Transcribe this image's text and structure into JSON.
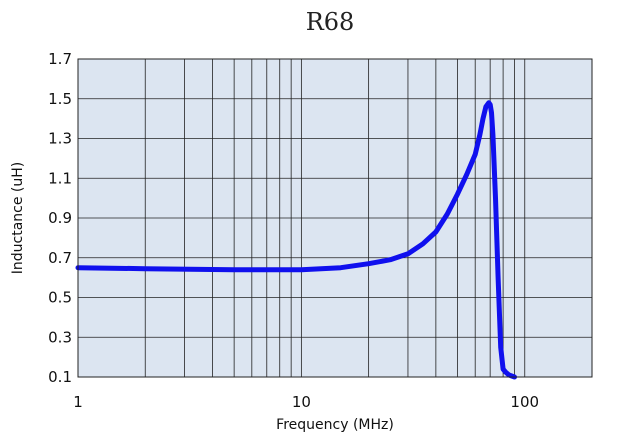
{
  "chart_data": {
    "type": "line",
    "title": "R68",
    "xlabel": "Frequency (MHz)",
    "ylabel": "Inductance (uH)",
    "x_scale": "log",
    "xlim": [
      1,
      200
    ],
    "ylim": [
      0.1,
      1.7
    ],
    "x_ticks": [
      {
        "value": 1,
        "label": "1"
      },
      {
        "value": 10,
        "label": "10"
      },
      {
        "value": 100,
        "label": "100"
      }
    ],
    "y_ticks": [
      {
        "value": 0.1,
        "label": "0.1"
      },
      {
        "value": 0.3,
        "label": "0.3"
      },
      {
        "value": 0.5,
        "label": "0.5"
      },
      {
        "value": 0.7,
        "label": "0.7"
      },
      {
        "value": 0.9,
        "label": "0.9"
      },
      {
        "value": 1.1,
        "label": "1.1"
      },
      {
        "value": 1.3,
        "label": "1.3"
      },
      {
        "value": 1.5,
        "label": "1.5"
      },
      {
        "value": 1.7,
        "label": "1.7"
      }
    ],
    "grid": true,
    "series": [
      {
        "x": [
          1,
          2,
          5,
          10,
          15,
          20,
          25,
          30,
          35,
          40,
          45,
          50,
          55,
          60,
          63,
          65,
          67,
          69,
          70,
          71,
          72,
          74,
          76,
          78,
          80,
          82,
          85,
          90
        ],
        "y": [
          0.65,
          0.645,
          0.64,
          0.64,
          0.65,
          0.67,
          0.69,
          0.72,
          0.77,
          0.83,
          0.92,
          1.02,
          1.12,
          1.22,
          1.32,
          1.4,
          1.46,
          1.48,
          1.47,
          1.43,
          1.32,
          1.0,
          0.6,
          0.25,
          0.14,
          0.125,
          0.11,
          0.1
        ]
      }
    ],
    "colors": {
      "plot_background": "#dce5f1",
      "grid": "#222222",
      "line": "#1010ee"
    }
  }
}
